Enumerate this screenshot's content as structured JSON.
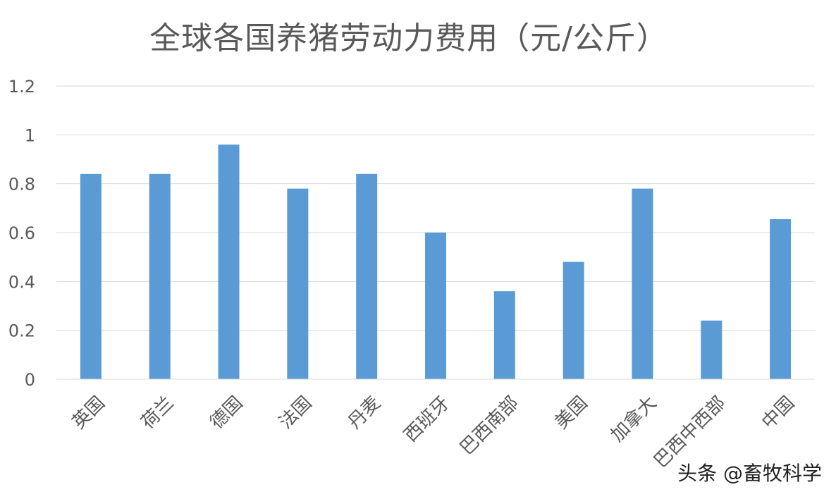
{
  "chart_data": {
    "type": "bar",
    "title": "全球各国养猪劳动力费用（元/公斤）",
    "xlabel": "",
    "ylabel": "",
    "categories": [
      "英国",
      "荷兰",
      "德国",
      "法国",
      "丹麦",
      "西班牙",
      "巴西南部",
      "美国",
      "加拿大",
      "巴西中西部",
      "中国"
    ],
    "values": [
      0.84,
      0.84,
      0.96,
      0.78,
      0.84,
      0.6,
      0.36,
      0.48,
      0.78,
      0.24,
      0.655
    ],
    "ylim": [
      0,
      1.2
    ],
    "yticks": [
      "0",
      "0.2",
      "0.4",
      "0.6",
      "0.8",
      "1",
      "1.2"
    ],
    "grid": true,
    "legend": "none",
    "bar_color": "#5b9bd5",
    "grid_color": "#d9d9d9"
  },
  "watermark": "头条 @畜牧科学"
}
